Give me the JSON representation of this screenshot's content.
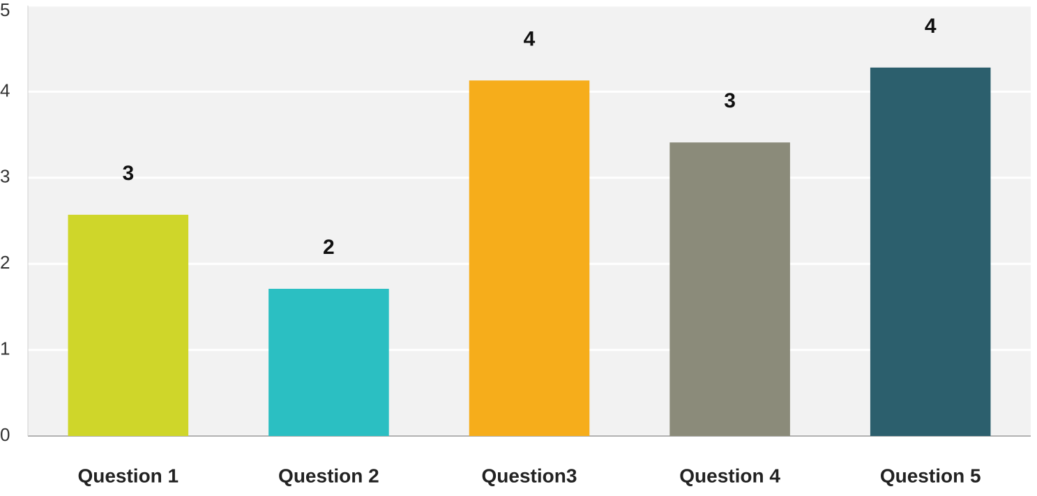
{
  "chart_data": {
    "type": "bar",
    "categories": [
      "Question 1",
      "Question 2",
      "Question3",
      "Question 4",
      "Question 5"
    ],
    "values": [
      2.57,
      1.71,
      4.13,
      3.41,
      4.28
    ],
    "value_labels": [
      "3",
      "2",
      "4",
      "3",
      "4"
    ],
    "colors": [
      "#cfd62a",
      "#2bbfc2",
      "#f6ad1b",
      "#8b8b7a",
      "#2c5f6d"
    ],
    "ylim": [
      0,
      5
    ],
    "yticks": [
      0,
      1,
      2,
      3,
      4,
      5
    ],
    "grid": true
  }
}
